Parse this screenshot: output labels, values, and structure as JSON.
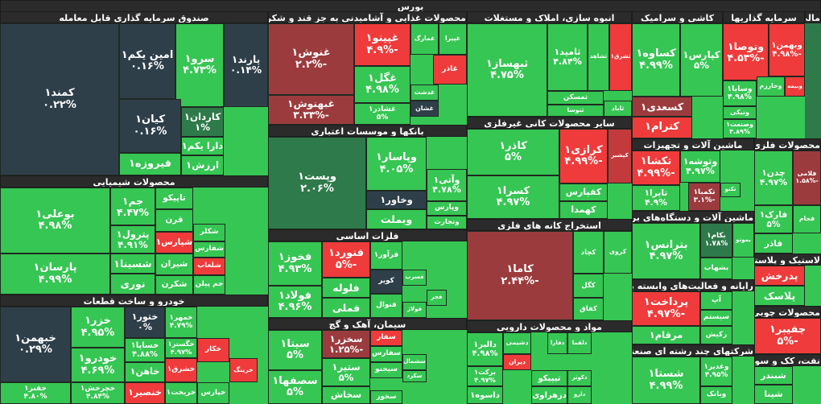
{
  "chart_data": {
    "type": "treemap",
    "title": "بورس",
    "sectors": [
      {
        "name": "صندوق سرمایه گذاری قابل معامله",
        "tiles": [
          {
            "name": "کمند۱",
            "value": 0.22,
            "value_label": "۰.۲۲%"
          },
          {
            "name": "امین یکم۱",
            "value": 0.16,
            "value_label": "۰.۱۶%"
          },
          {
            "name": "سرو۱",
            "value": 4.73,
            "value_label": "۴.۷۳%"
          },
          {
            "name": "پارند۱",
            "value": 0.14,
            "value_label": "۰.۱۴%"
          },
          {
            "name": "کیان۱",
            "value": 0.16,
            "value_label": "۰.۱۶%"
          },
          {
            "name": "کاردان۱",
            "value": 1,
            "value_label": "۱%"
          },
          {
            "name": "دارا یکم۱",
            "color": "#36c653"
          },
          {
            "name": "فیروزه۱",
            "color": "#36c653"
          },
          {
            "name": "ارزش۱",
            "color": "#36c653"
          }
        ]
      },
      {
        "name": "محصولات شیمیایی",
        "tiles": [
          {
            "name": "بوعلی۱",
            "value": 4.98,
            "value_label": "۴.۹۸%"
          },
          {
            "name": "پارسان۱",
            "value": 4.99,
            "value_label": "۴.۹۹%"
          },
          {
            "name": "جم۱",
            "value": 4.47,
            "value_label": "۴.۴۷%"
          },
          {
            "name": "تاپیکو",
            "color": "#36c653"
          },
          {
            "name": "قرن",
            "color": "#36c653"
          },
          {
            "name": "پترول۱",
            "value": 4.91,
            "value_label": "۴.۹۱%"
          },
          {
            "name": "شپارس۱",
            "color": "#ef3b3b"
          },
          {
            "name": "شسینا۱",
            "color": "#36c653"
          },
          {
            "name": "شیران",
            "color": "#36c653"
          },
          {
            "name": "نوری",
            "color": "#36c653"
          },
          {
            "name": "شکرن",
            "color": "#36c653"
          },
          {
            "name": "شکلر",
            "color": "#36c653"
          },
          {
            "name": "شفارس",
            "color": "#36c653"
          },
          {
            "name": "شلعاب",
            "color": "#ef3b3b"
          },
          {
            "name": "جم پیلن",
            "color": "#36c653"
          }
        ]
      },
      {
        "name": "خودرو و ساخت قطعات",
        "tiles": [
          {
            "name": "خبهمن۱",
            "value": 0.29,
            "value_label": "۰.۲۹%"
          },
          {
            "name": "خفنر۱",
            "value": 4.8,
            "value_label": "۴.۸۰%"
          },
          {
            "name": "خزر۱",
            "value": 4.95,
            "value_label": "۴.۹۵%"
          },
          {
            "name": "خودرو۱",
            "value": 4.69,
            "value_label": "۴.۶۹%"
          },
          {
            "name": "خچرخش۱",
            "value": 4.84,
            "value_label": "۴.۸۴%"
          },
          {
            "name": "ختور۱",
            "value": 0,
            "value_label": "۰%"
          },
          {
            "name": "خساپا۱",
            "value": 4.88,
            "value_label": "۴.۸۸%"
          },
          {
            "name": "خاهن۱",
            "color": "#36c653"
          },
          {
            "name": "خنصیر۱",
            "color": "#ef3b3b"
          },
          {
            "name": "خمهر۱",
            "value": 4.79,
            "value_label": "۴.۷۹%"
          },
          {
            "name": "خگستر۱",
            "value": 4.97,
            "value_label": "۴.۹۷%"
          },
          {
            "name": "خشرق۱",
            "color": "#ef3b3b"
          },
          {
            "name": "خریخت۱",
            "color": "#36c653"
          },
          {
            "name": "خکار",
            "color": "#ef3b3b"
          },
          {
            "name": "خرینگ",
            "color": "#ef3b3b"
          },
          {
            "name": "خپارس",
            "color": "#36c653"
          }
        ]
      },
      {
        "name": "محصولات غذایی و آشامیدنی به جز قند و شکر",
        "tiles": [
          {
            "name": "غنوش۱",
            "value": -2.2,
            "value_label": "-۲.۲%"
          },
          {
            "name": "غبهنوش۱",
            "value": -3.33,
            "value_label": "-۳.۳۳%"
          },
          {
            "name": "غپینو۱",
            "value": -4.9,
            "value_label": "-۴.۹%"
          },
          {
            "name": "غگل۱",
            "value": 4.98,
            "value_label": "۴.۹۸%"
          },
          {
            "name": "غشاذر۱",
            "value": 5,
            "value_label": "۵%"
          },
          {
            "name": "غمارگ",
            "color": "#36c653"
          },
          {
            "name": "غپیرا",
            "color": "#36c653"
          },
          {
            "name": "غاذر",
            "color": "#ef3b3b"
          },
          {
            "name": "غدشت",
            "color": "#36c653"
          },
          {
            "name": "غشان",
            "color": "#2f3f4a"
          }
        ]
      },
      {
        "name": "بانکها و موسسات اعتباری",
        "tiles": [
          {
            "name": "وپست۱",
            "value": 2.06,
            "value_label": "۲.۰۶%"
          },
          {
            "name": "وپاسار۱",
            "value": 4.05,
            "value_label": "۴.۰۵%"
          },
          {
            "name": "وخاور۱",
            "color": "#2f3f4a"
          },
          {
            "name": "وبملت",
            "color": "#36c653"
          },
          {
            "name": "وآتی۱",
            "value": 4.78,
            "value_label": "۴.۷۸%"
          },
          {
            "name": "وپارس",
            "color": "#36c653"
          },
          {
            "name": "وتجارت",
            "color": "#36c653"
          }
        ]
      },
      {
        "name": "فلزات اساسی",
        "tiles": [
          {
            "name": "فخوز۱",
            "value": 4.93,
            "value_label": "۴.۹۳%"
          },
          {
            "name": "فولاد۱",
            "value": 4.96,
            "value_label": "۴.۹۶%"
          },
          {
            "name": "فنورد۱",
            "value": -5,
            "value_label": "-۵%"
          },
          {
            "name": "فلوله",
            "color": "#36c653"
          },
          {
            "name": "فملی",
            "color": "#36c653"
          },
          {
            "name": "فرآور۱",
            "color": "#36c653"
          },
          {
            "name": "کویر",
            "color": "#2f3f4a"
          },
          {
            "name": "فنوال",
            "color": "#36c653"
          },
          {
            "name": "فسرب",
            "color": "#36c653"
          },
          {
            "name": "فولاژ",
            "color": "#36c653"
          },
          {
            "name": "فجر",
            "color": "#36c653"
          }
        ]
      },
      {
        "name": "سیمان، آهک و گچ",
        "tiles": [
          {
            "name": "سیتا۱",
            "value": 5,
            "value_label": "۵%"
          },
          {
            "name": "سصفها۱",
            "value": 5,
            "value_label": "۵%"
          },
          {
            "name": "سخزر۱",
            "value": -1.25,
            "value_label": "-۱.۲۵%"
          },
          {
            "name": "ستیر۱",
            "value": 5,
            "value_label": "۵%"
          },
          {
            "name": "سخاش",
            "color": "#36c653"
          },
          {
            "name": "سفار",
            "color": "#ef3b3b"
          },
          {
            "name": "سفارس",
            "color": "#36c653"
          },
          {
            "name": "سیجنو",
            "color": "#36c653"
          },
          {
            "name": "سخوز",
            "color": "#36c653"
          },
          {
            "name": "سشمال",
            "color": "#36c653"
          },
          {
            "name": "سکرد",
            "color": "#36c653"
          }
        ]
      },
      {
        "name": "انبوه سازی، املاک و مستغلات",
        "tiles": [
          {
            "name": "ثبهساز۱",
            "value": 4.75,
            "value_label": "۴.۷۵%"
          },
          {
            "name": "ثامید۱",
            "value": 4.84,
            "value_label": "۴.۸۴%"
          },
          {
            "name": "ثشاهد",
            "color": "#36c653"
          },
          {
            "name": "ثشرق۱",
            "color": "#ef3b3b"
          },
          {
            "name": "ثمسکن",
            "color": "#36c653"
          },
          {
            "name": "ثنوسا",
            "color": "#36c653"
          },
          {
            "name": "ثاباد",
            "color": "#36c653"
          }
        ]
      },
      {
        "name": "سایر محصولات کانی غیرفلزی",
        "tiles": [
          {
            "name": "کاذر۱",
            "value": 5,
            "value_label": "۵%"
          },
          {
            "name": "کسرا۱",
            "value": 4.97,
            "value_label": "۴.۹۷%"
          },
          {
            "name": "کرازی۱",
            "value": -4.99,
            "value_label": "-۴.۹۹%"
          },
          {
            "name": "کپشیر",
            "color": "#c33a3c"
          },
          {
            "name": "کفپارس",
            "color": "#36c653"
          },
          {
            "name": "کهمدا",
            "color": "#36c653"
          }
        ]
      },
      {
        "name": "استخراج کانه های فلزی",
        "tiles": [
          {
            "name": "کاما۱",
            "value": -2.44,
            "value_label": "-۲.۴۴%"
          },
          {
            "name": "کچاد",
            "color": "#36c653"
          },
          {
            "name": "کروی",
            "color": "#36c653"
          },
          {
            "name": "کگل",
            "color": "#36c653"
          },
          {
            "name": "کفاق",
            "color": "#36c653"
          }
        ]
      },
      {
        "name": "مواد و محصولات دارویی",
        "tiles": [
          {
            "name": "دالبر۱",
            "value": 4.98,
            "value_label": "۴.۹۸%"
          },
          {
            "name": "برکت۱",
            "value": 4.97,
            "value_label": "۴.۹۷%"
          },
          {
            "name": "داسوه۱",
            "color": "#36c653"
          },
          {
            "name": "دشیمی",
            "color": "#36c653"
          },
          {
            "name": "دیران",
            "color": "#ef3b3b"
          },
          {
            "name": "تیپیکو",
            "color": "#36c653"
          },
          {
            "name": "دزهراوی",
            "color": "#36c653"
          },
          {
            "name": "دفارا",
            "color": "#36c653"
          },
          {
            "name": "دکوثر",
            "color": "#36c653"
          },
          {
            "name": "دارو",
            "color": "#36c653"
          },
          {
            "name": "دلقما",
            "color": "#36c653"
          }
        ]
      },
      {
        "name": "کاشی و سرامیک",
        "tiles": [
          {
            "name": "کساوه۱",
            "value": 4.99,
            "value_label": "۴.۹۹%"
          },
          {
            "name": "کپارس۱",
            "value": 5,
            "value_label": "۵%"
          },
          {
            "name": "کسعدی۱",
            "color": "#9c3b3e"
          },
          {
            "name": "کترام۱",
            "color": "#ef3b3b"
          }
        ]
      },
      {
        "name": "سرمایه گذاریها",
        "tiles": [
          {
            "name": "وتوصا۱",
            "value": -4.53,
            "value_label": "-۴.۵۳%"
          },
          {
            "name": "وبهمن۱",
            "value": -4.98,
            "value_label": "-۴.۹۸%"
          },
          {
            "name": "وسایا۱",
            "value": 4.98,
            "value_label": "۴.۹۸%"
          },
          {
            "name": "ونیکی",
            "color": "#36c653"
          },
          {
            "name": "وصنعت۱",
            "value": 4.89,
            "value_label": "۴.۸۹%"
          },
          {
            "name": "وخارزم",
            "color": "#36c653"
          },
          {
            "name": "وبیمه",
            "color": "#ef3b3b"
          }
        ]
      },
      {
        "name": "مالی",
        "tiles": []
      },
      {
        "name": "ماشین آلات و تجهیزات",
        "tiles": [
          {
            "name": "تکشا۱",
            "value": -4.99,
            "value_label": "-۴.۹۹%"
          },
          {
            "name": "تایرا۱",
            "value": 4.9,
            "value_label": "۴.۹%"
          },
          {
            "name": "وتوشه۱",
            "value": 4.97,
            "value_label": "۴.۹۷%"
          },
          {
            "name": "تکمبا۱",
            "value": -3.1,
            "value_label": "-۳.۱%"
          },
          {
            "name": "تکنو",
            "color": "#36c653"
          }
        ]
      },
      {
        "name": "ماشین آلات و دستگاه‌های برقی",
        "tiles": [
          {
            "name": "بترانس۱",
            "value": 4.97,
            "value_label": "۴.۹۷%"
          },
          {
            "name": "بکام۱",
            "value": 1.78,
            "value_label": "۱.۷۸%"
          },
          {
            "name": "بشهاب",
            "color": "#36c653"
          },
          {
            "name": "بموتو",
            "color": "#36c653"
          }
        ]
      },
      {
        "name": "رایانه و فعالیت‌های وابسته به آن",
        "tiles": [
          {
            "name": "پرداخت۱",
            "value": -4.97,
            "value_label": "-۴.۹۷%"
          },
          {
            "name": "مرقام۱",
            "color": "#36c653"
          },
          {
            "name": "آپ",
            "color": "#36c653"
          },
          {
            "name": "سیستم",
            "color": "#36c653"
          },
          {
            "name": "رکیش",
            "color": "#36c653"
          }
        ]
      },
      {
        "name": "شرکتهای چند رشته ای صنعتی",
        "tiles": [
          {
            "name": "شستا۱",
            "value": 4.99,
            "value_label": "۴.۹۹%"
          },
          {
            "name": "وغدیر۱",
            "value": 4.95,
            "value_label": "۴.۹۵%"
          },
          {
            "name": "وبانک",
            "color": "#36c653"
          }
        ]
      },
      {
        "name": "محصولات فلزی",
        "tiles": [
          {
            "name": "چدن۱",
            "value": 4.97,
            "value_label": "۴.۹۷%"
          },
          {
            "name": "فلامی",
            "value": -1.58,
            "value_label": "-۱.۵۸%"
          },
          {
            "name": "فارک۱",
            "value": 5,
            "value_label": "۵%"
          },
          {
            "name": "فجام",
            "color": "#36c653"
          },
          {
            "name": "فاذر",
            "color": "#36c653"
          }
        ]
      },
      {
        "name": "لاستیک و پلاستیک",
        "tiles": [
          {
            "name": "پدرخش",
            "color": "#ef3b3b"
          },
          {
            "name": "پلاسک",
            "color": "#36c653"
          }
        ]
      },
      {
        "name": "محصولات چوبی",
        "tiles": [
          {
            "name": "چفیبر۱",
            "value": -5,
            "value_label": "-۵%"
          }
        ]
      },
      {
        "name": "نفت، کک و سوخت هسته ای",
        "tiles": [
          {
            "name": "شبندر",
            "color": "#36c653"
          },
          {
            "name": "شپنا",
            "color": "#36c653"
          }
        ]
      }
    ]
  }
}
